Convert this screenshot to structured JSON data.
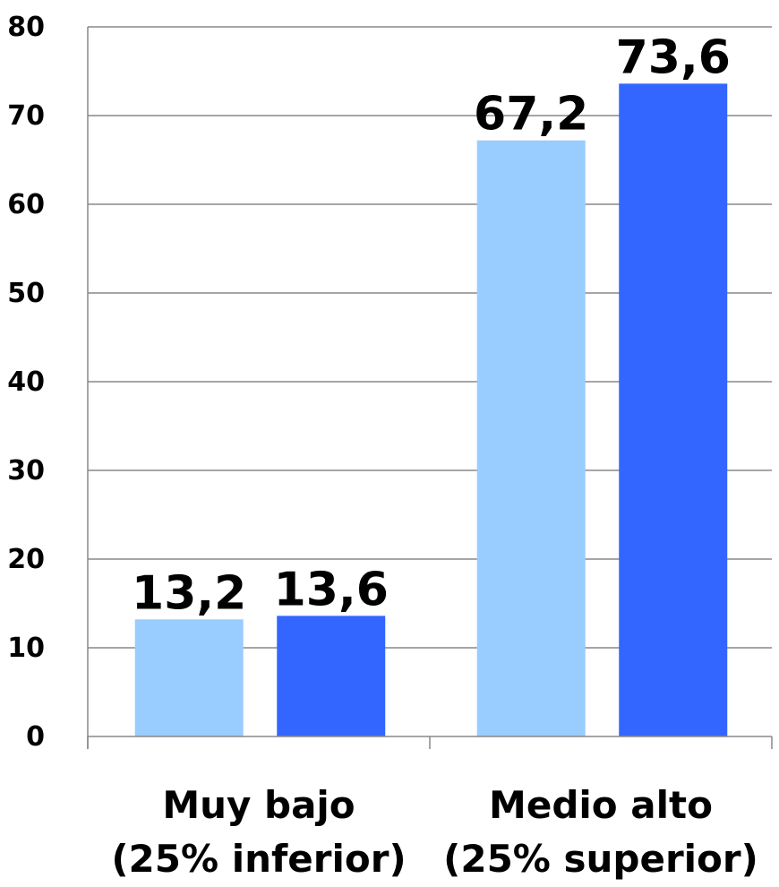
{
  "chart_data": {
    "type": "bar",
    "categories": [
      [
        "Muy bajo",
        "(25% inferior)"
      ],
      [
        "Medio alto",
        "(25% superior)"
      ]
    ],
    "series": [
      {
        "values": [
          13.2,
          67.2
        ],
        "labels": [
          "13,2",
          "67,2"
        ],
        "color": "#99ccff"
      },
      {
        "values": [
          13.6,
          73.6
        ],
        "labels": [
          "13,6",
          "73,6"
        ],
        "color": "#3366ff"
      }
    ],
    "ylim": [
      0,
      80
    ],
    "yticks": [
      0,
      10,
      20,
      30,
      40,
      50,
      60,
      70,
      80
    ],
    "grid": true,
    "legend": "none",
    "title": "",
    "xlabel": "",
    "ylabel": ""
  }
}
